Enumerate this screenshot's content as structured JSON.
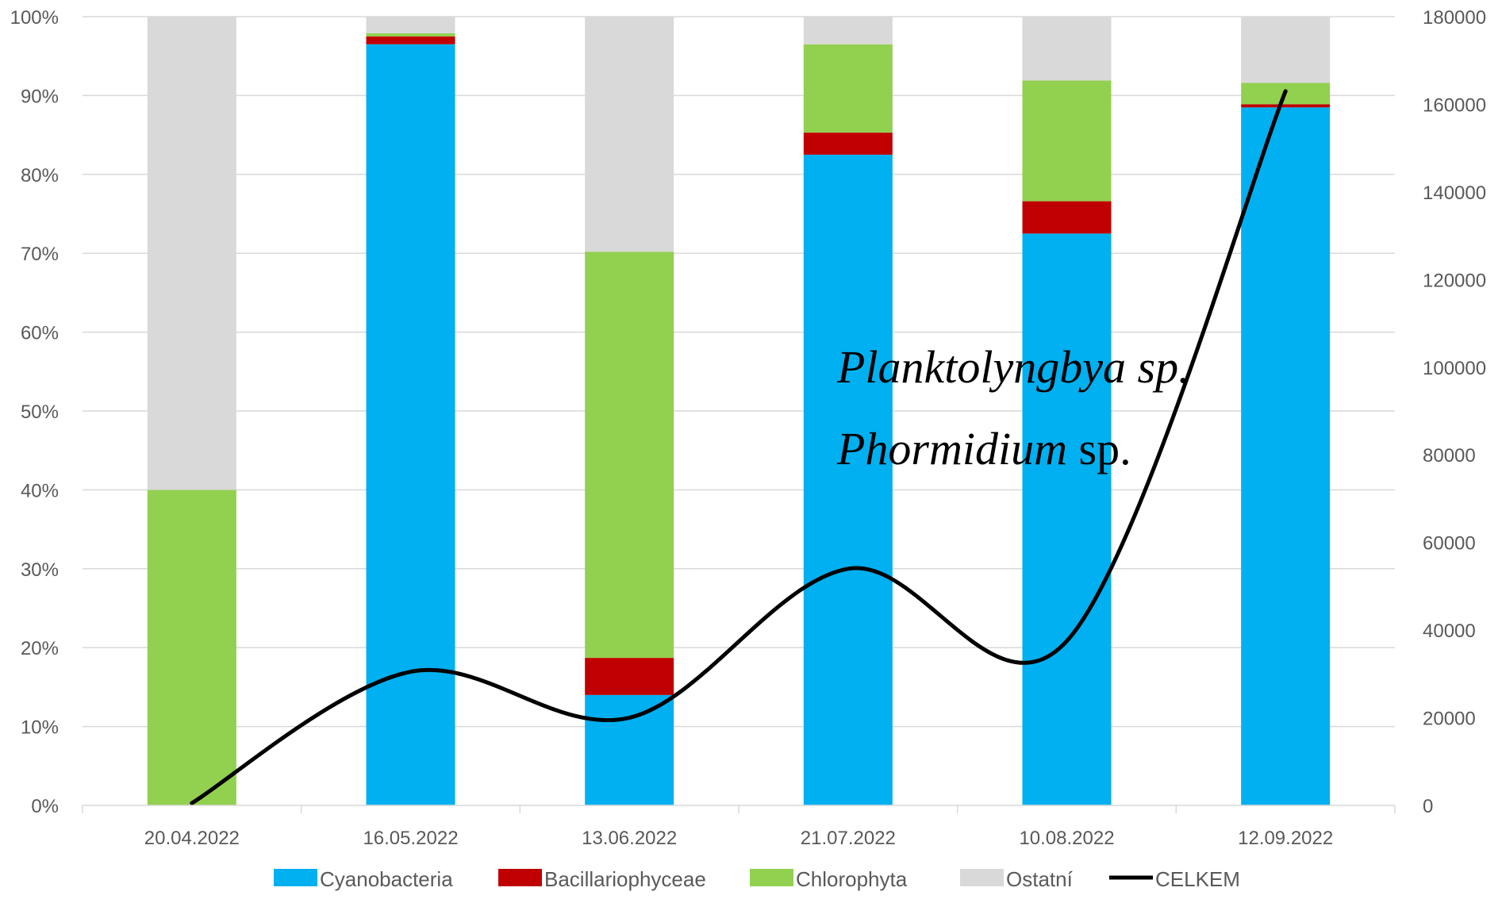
{
  "chart_data": {
    "type": "bar",
    "stacked": true,
    "stack_mode": "percent",
    "categories": [
      "20.04.2022",
      "16.05.2022",
      "13.06.2022",
      "21.07.2022",
      "10.08.2022",
      "12.09.2022"
    ],
    "series": [
      {
        "name": "Cyanobacteria",
        "color": "#00b0f0",
        "values": [
          0,
          96.5,
          14,
          82.5,
          72.5,
          88.5
        ]
      },
      {
        "name": "Bacillariophyceae",
        "color": "#c00000",
        "values": [
          0,
          1,
          4.7,
          2.8,
          4.1,
          0.4
        ]
      },
      {
        "name": "Chlorophyta",
        "color": "#92d050",
        "values": [
          40,
          0.4,
          51.5,
          11.2,
          15.3,
          2.7
        ]
      },
      {
        "name": "Ostatní",
        "color": "#d9d9d9",
        "values": [
          60,
          2.1,
          29.8,
          3.5,
          8.1,
          8.4
        ]
      }
    ],
    "line_series": {
      "name": "CELKEM",
      "color": "#000000",
      "axis": "secondary",
      "values": [
        500,
        30500,
        20000,
        54000,
        37500,
        163000
      ]
    },
    "primary_axis": {
      "ylim": [
        0,
        100
      ],
      "ticks": [
        "0%",
        "10%",
        "20%",
        "30%",
        "40%",
        "50%",
        "60%",
        "70%",
        "80%",
        "90%",
        "100%"
      ]
    },
    "secondary_axis": {
      "ylim": [
        0,
        180000
      ],
      "ticks": [
        "0",
        "20000",
        "40000",
        "60000",
        "80000",
        "100000",
        "120000",
        "140000",
        "160000",
        "180000"
      ]
    },
    "grid": "horizontal",
    "legend_position": "bottom",
    "annotations": [
      {
        "parts": [
          {
            "text": "Planktolyngbya sp.",
            "italic": true
          }
        ]
      },
      {
        "parts": [
          {
            "text": "Phormidium",
            "italic": true
          },
          {
            "text": " sp.",
            "italic": false
          }
        ]
      }
    ]
  }
}
